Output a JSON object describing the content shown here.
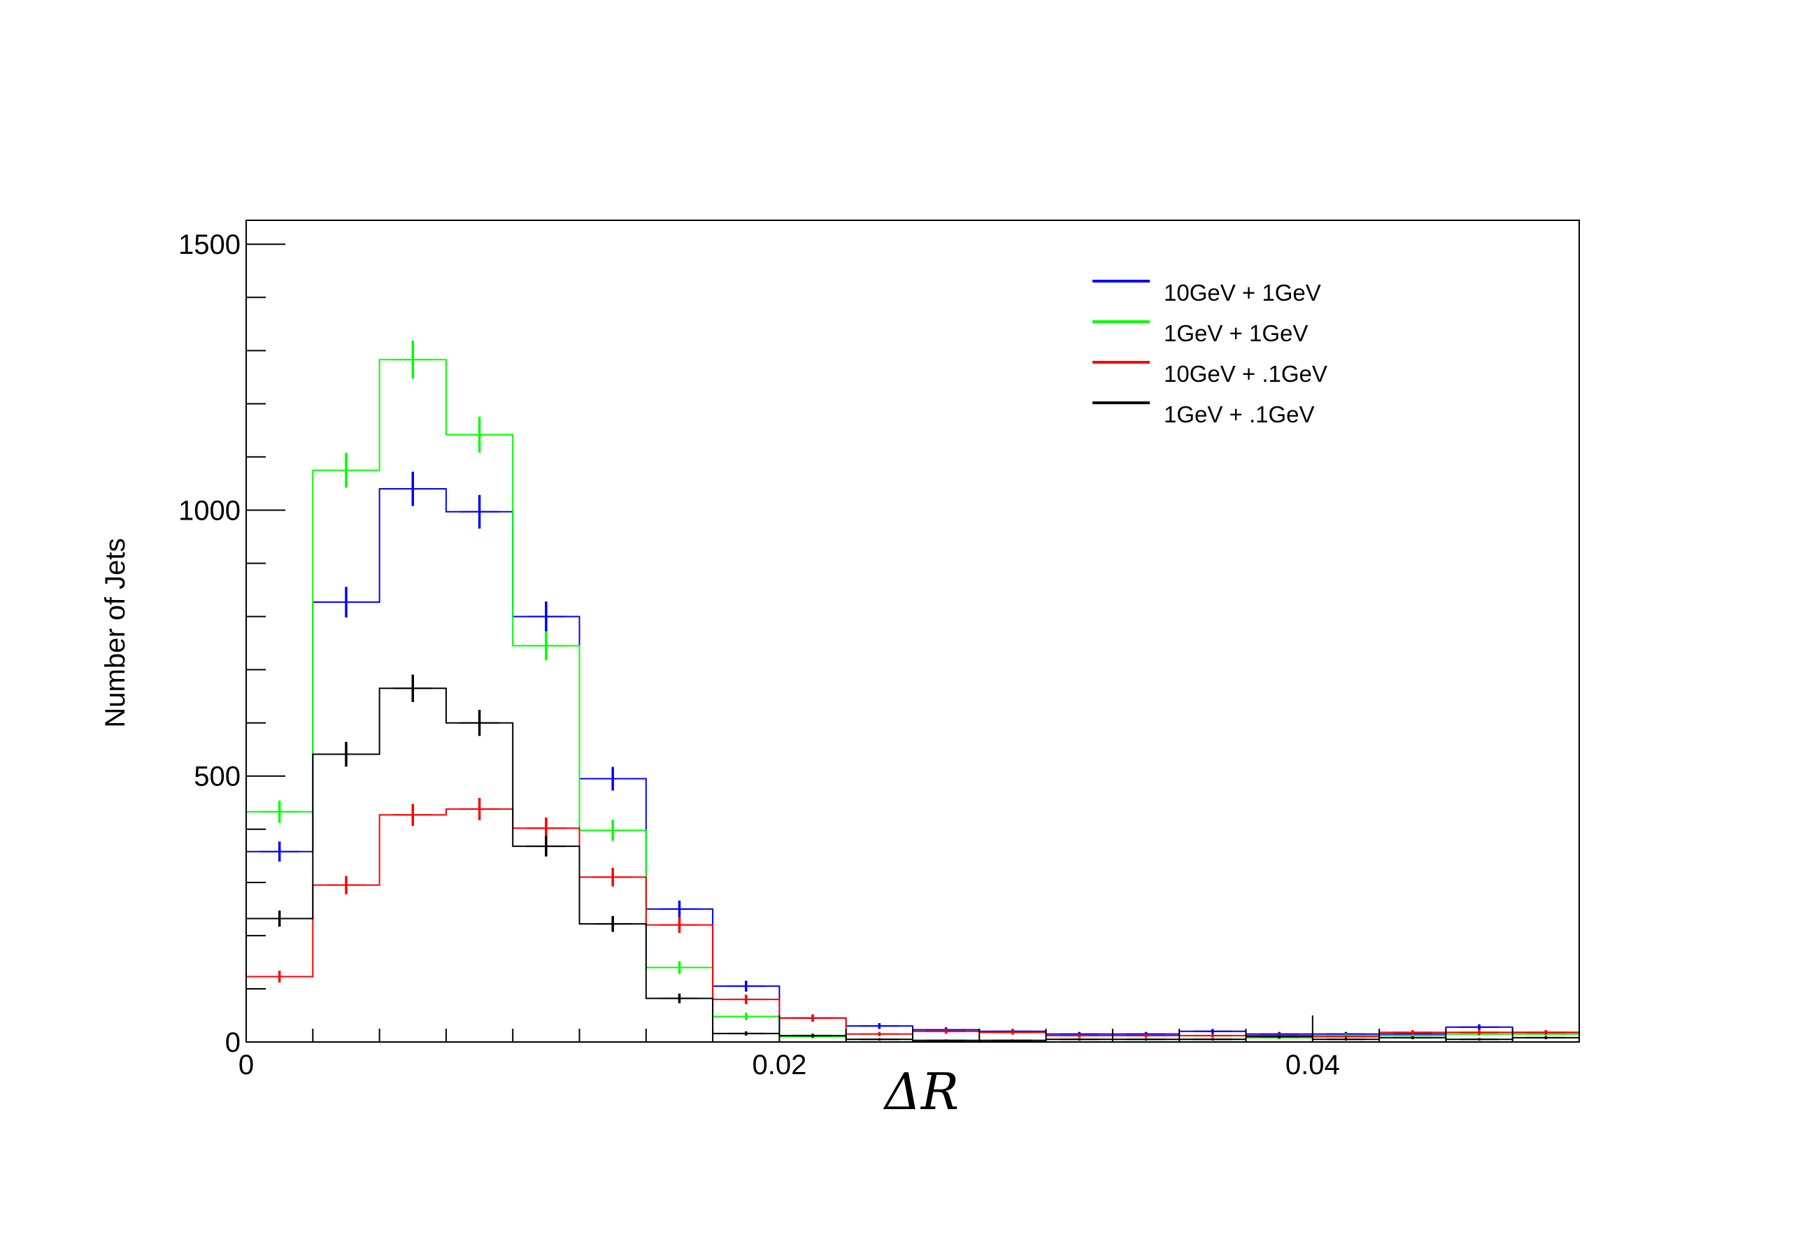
{
  "chart_data": {
    "type": "histogram",
    "title": "",
    "xlabel": "ΔR",
    "ylabel": "Number of Jets",
    "xlim": [
      0,
      0.05
    ],
    "ylim": [
      0,
      1545
    ],
    "xticks": [
      {
        "v": 0,
        "label": "0"
      },
      {
        "v": 0.02,
        "label": "0.02"
      },
      {
        "v": 0.04,
        "label": "0.04"
      }
    ],
    "yticks": [
      {
        "v": 0,
        "label": "0"
      },
      {
        "v": 500,
        "label": "500"
      },
      {
        "v": 1000,
        "label": "1000"
      },
      {
        "v": 1500,
        "label": "1500"
      }
    ],
    "legend_position": "top-right",
    "bin_edges": [
      0,
      0.0025,
      0.005,
      0.0075,
      0.01,
      0.0125,
      0.015,
      0.0175,
      0.02,
      0.0225,
      0.025,
      0.0275,
      0.03,
      0.0325,
      0.035,
      0.0375,
      0.04,
      0.0425,
      0.045,
      0.0475,
      0.05
    ],
    "series": [
      {
        "name": "10GeV + 1GeV",
        "color": "#0000ff",
        "values": [
          358,
          827,
          1040,
          997,
          800,
          495,
          250,
          105,
          45,
          30,
          23,
          20,
          15,
          15,
          20,
          15,
          15,
          15,
          28,
          18
        ]
      },
      {
        "name": "1GeV + 1GeV",
        "color": "#00ff00",
        "values": [
          433,
          1075,
          1283,
          1142,
          745,
          398,
          140,
          48,
          10,
          5,
          3,
          3,
          5,
          5,
          5,
          8,
          12,
          12,
          15,
          15
        ]
      },
      {
        "name": "10GeV + .1GeV",
        "color": "#ff0000",
        "values": [
          123,
          295,
          427,
          438,
          402,
          310,
          220,
          80,
          45,
          15,
          20,
          18,
          12,
          12,
          12,
          12,
          10,
          18,
          18,
          18
        ]
      },
      {
        "name": "1GeV + .1GeV",
        "color": "#000000",
        "values": [
          232,
          541,
          665,
          600,
          368,
          222,
          82,
          16,
          12,
          5,
          3,
          3,
          5,
          5,
          5,
          10,
          5,
          8,
          5,
          8
        ]
      }
    ]
  }
}
